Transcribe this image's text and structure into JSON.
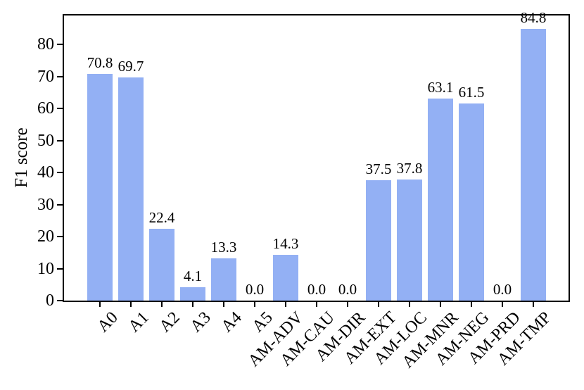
{
  "figure": {
    "background_color": "#ffffff",
    "text_color": "#000000"
  },
  "chart_data": {
    "type": "bar",
    "title": "",
    "xlabel": "",
    "ylabel": "F1 score",
    "categories": [
      "A0",
      "A1",
      "A2",
      "A3",
      "A4",
      "A5",
      "AM-ADV",
      "AM-CAU",
      "AM-DIR",
      "AM-EXT",
      "AM-LOC",
      "AM-MNR",
      "AM-NEG",
      "AM-PRD",
      "AM-TMP"
    ],
    "values": [
      70.8,
      69.7,
      22.4,
      4.1,
      13.3,
      0.0,
      14.3,
      0.0,
      0.0,
      37.5,
      37.8,
      63.1,
      61.5,
      0.0,
      84.8
    ],
    "value_labels": [
      "70.8",
      "69.7",
      "22.4",
      "4.1",
      "13.3",
      "0.0",
      "14.3",
      "0.0",
      "0.0",
      "37.5",
      "37.8",
      "63.1",
      "61.5",
      "0.0",
      "84.8"
    ],
    "yticks": [
      0,
      10,
      20,
      30,
      40,
      50,
      60,
      70,
      80
    ],
    "ytick_labels": [
      "0",
      "10",
      "20",
      "30",
      "40",
      "50",
      "60",
      "70",
      "80"
    ],
    "ylim": [
      0,
      89.04
    ],
    "bar_color": "#93b0f4",
    "axis_color": "#000000",
    "grid": false,
    "legend": "none",
    "x_tick_rotation_deg": 45
  }
}
